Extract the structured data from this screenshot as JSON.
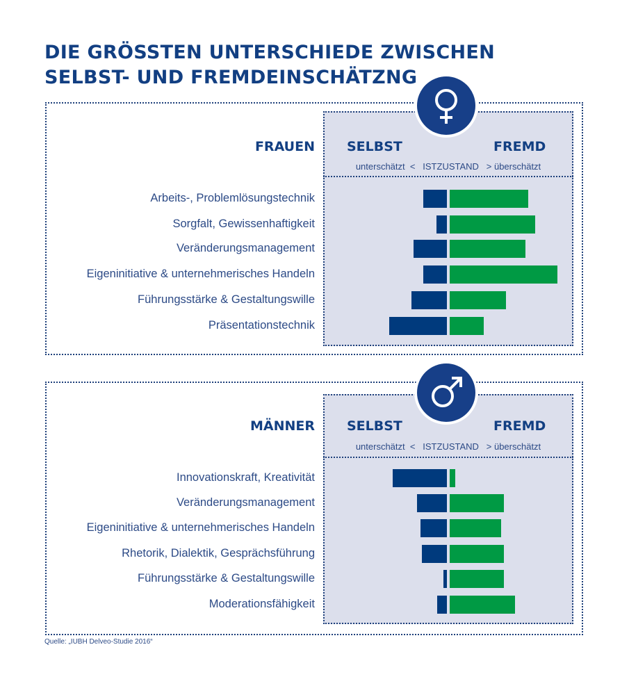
{
  "title_line1": "DIE GRÖSSTEN UNTERSCHIEDE ZWISCHEN",
  "title_line2": "SELBST- UND FREMDEINSCHÄTZNG",
  "source": "Quelle: „IUBH Delveo-Studie 2016“",
  "colors": {
    "selbst": "#003a7d",
    "fremd": "#009a44",
    "panel": "#dcdfec",
    "title": "#123f82"
  },
  "chart_data": [
    {
      "type": "bar",
      "group": "FRAUEN",
      "icon": "female-symbol-icon",
      "left_header": "SELBST",
      "right_header": "FREMD",
      "scale_text": "unterschätzt  <   ISTZUSTAND   > überschätzt",
      "categories": [
        "Arbeits-,  Problemlösungstechnik",
        "Sorgfalt, Gewissenhaftigkeit",
        "Veränderungsmanagement",
        "Eigeninitiative & unternehmerisches Handeln",
        "Führungsstärke & Gestaltungswille",
        "Präsentationstechnik"
      ],
      "series": [
        {
          "name": "SELBST",
          "values": [
            34,
            15,
            48,
            34,
            51,
            83
          ]
        },
        {
          "name": "FREMD",
          "values": [
            113,
            123,
            109,
            155,
            81,
            49
          ]
        }
      ]
    },
    {
      "type": "bar",
      "group": "MÄNNER",
      "icon": "male-symbol-icon",
      "left_header": "SELBST",
      "right_header": "FREMD",
      "scale_text": "unterschätzt  <   ISTZUSTAND   > überschätzt",
      "categories": [
        "Innovationskraft, Kreativität",
        "Veränderungsmanagement",
        "Eigeninitiative & unternehmerisches Handeln",
        "Rhetorik, Dialektik, Gesprächsführung",
        "Führungsstärke & Gestaltungswille",
        "Moderationsfähigkeit"
      ],
      "series": [
        {
          "name": "SELBST",
          "values": [
            78,
            43,
            38,
            36,
            5,
            14
          ]
        },
        {
          "name": "FREMD",
          "values": [
            8,
            78,
            74,
            78,
            78,
            94
          ]
        }
      ]
    }
  ]
}
